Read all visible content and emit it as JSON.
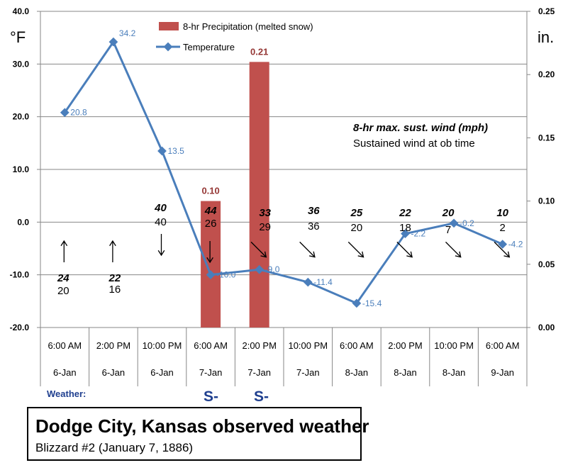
{
  "units": {
    "left": "°F",
    "right": "in."
  },
  "legend": {
    "precip": "8-hr Precipitation (melted snow)",
    "temp": "Temperature"
  },
  "wind_legend": {
    "max": "8-hr max. sust. wind (mph)",
    "ob": "Sustained wind at ob time"
  },
  "weather": {
    "label": "Weather:",
    "codes": [
      "S-",
      "S-"
    ]
  },
  "title": {
    "main": "Dodge City, Kansas observed weather",
    "sub": "Blizzard #2 (January 7, 1886)"
  },
  "colors": {
    "temp_line": "#4a7ebb",
    "precip_bar": "#c0504d",
    "precip_label": "#953735",
    "weather_code": "#1f3f8f",
    "grid": "#878787"
  },
  "chart_data": {
    "type": "line",
    "categories_time": [
      "6:00 AM",
      "2:00 PM",
      "10:00 PM",
      "6:00 AM",
      "2:00 PM",
      "10:00 PM",
      "6:00 AM",
      "2:00 PM",
      "10:00 PM",
      "6:00 AM"
    ],
    "categories_date": [
      "6-Jan",
      "6-Jan",
      "6-Jan",
      "7-Jan",
      "7-Jan",
      "7-Jan",
      "8-Jan",
      "8-Jan",
      "8-Jan",
      "9-Jan"
    ],
    "series": [
      {
        "name": "Temperature",
        "type": "line",
        "axis": "left",
        "values": [
          20.8,
          34.2,
          13.5,
          -10.0,
          -9.0,
          -11.4,
          -15.4,
          -2.2,
          -0.2,
          -4.2
        ],
        "labels": [
          "20.8",
          "34.2",
          "13.5",
          "-10.0",
          "-9.0",
          "-11.4",
          "-15.4",
          "-2.2",
          "-0.2",
          "-4.2"
        ]
      },
      {
        "name": "8-hr Precipitation (melted snow)",
        "type": "bar",
        "axis": "right",
        "values": [
          null,
          null,
          null,
          0.1,
          0.21,
          null,
          null,
          null,
          null,
          null
        ],
        "labels": [
          "",
          "",
          "",
          "0.10",
          "0.21",
          "",
          "",
          "",
          "",
          ""
        ]
      }
    ],
    "left_axis": {
      "min": -20,
      "max": 40,
      "step": 10,
      "ticks": [
        "-20.0",
        "-10.0",
        "0.0",
        "10.0",
        "20.0",
        "30.0",
        "40.0"
      ]
    },
    "right_axis": {
      "min": 0,
      "max": 0.25,
      "step": 0.05,
      "ticks": [
        "0.00",
        "0.05",
        "0.10",
        "0.15",
        "0.20",
        "0.25"
      ]
    },
    "grid": true,
    "legend_position": "top-center",
    "wind": {
      "max_sustained": [
        "24",
        "22",
        "40",
        "44",
        "33",
        "36",
        "25",
        "22",
        "20",
        "10"
      ],
      "at_ob_time": [
        "20",
        "16",
        "40",
        "26",
        "29",
        "36",
        "20",
        "18",
        "7",
        "2"
      ],
      "direction_arrow_deg": [
        0,
        0,
        180,
        180,
        135,
        135,
        135,
        135,
        135,
        135
      ]
    }
  }
}
